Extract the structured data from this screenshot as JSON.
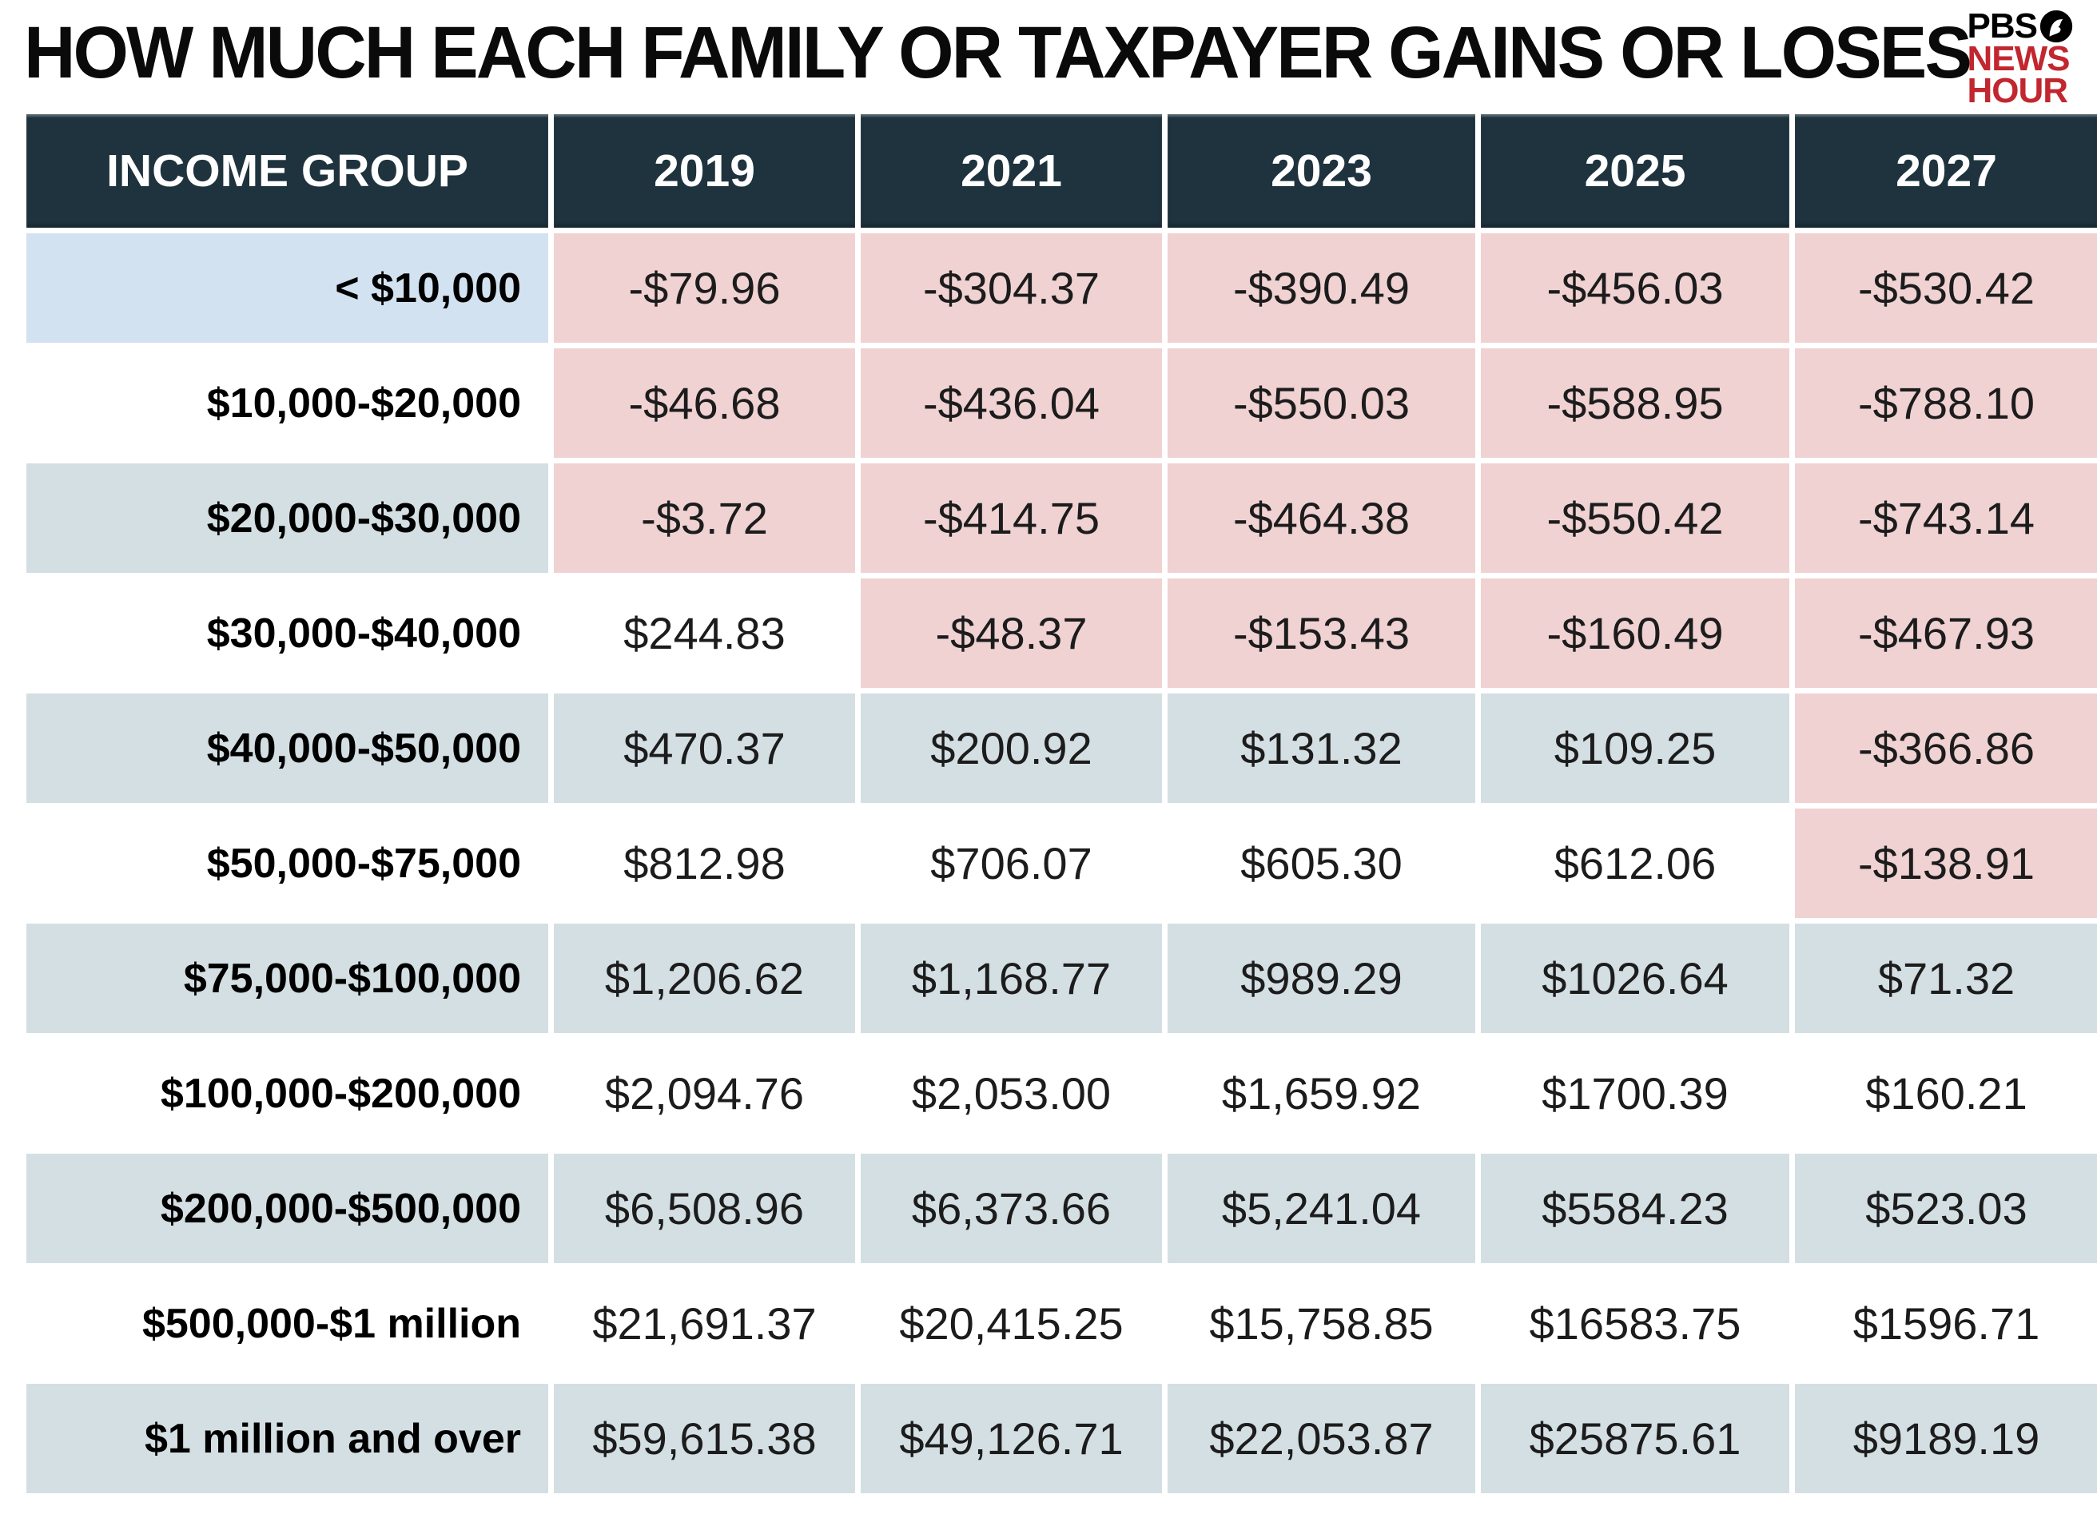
{
  "title": "HOW MUCH EACH FAMILY OR TAXPAYER GAINS OR LOSES",
  "logo": {
    "pbs": "PBS",
    "news": "NEWS",
    "hour": "HOUR"
  },
  "colors": {
    "header_bg": "#1E333E",
    "loss_pink": "#F0D2D3",
    "row_alt": "#D4DFE3",
    "first_row_label_blue": "#D3E2F0",
    "logo_red": "#C2262E"
  },
  "table": {
    "header": [
      "INCOME GROUP",
      "2019",
      "2021",
      "2023",
      "2025",
      "2027"
    ],
    "rows": [
      {
        "label": "< $10,000",
        "values": [
          "-$79.96",
          "-$304.37",
          "-$390.49",
          "-$456.03",
          "-$530.42"
        ]
      },
      {
        "label": "$10,000-$20,000",
        "values": [
          "-$46.68",
          "-$436.04",
          "-$550.03",
          "-$588.95",
          "-$788.10"
        ]
      },
      {
        "label": "$20,000-$30,000",
        "values": [
          "-$3.72",
          "-$414.75",
          "-$464.38",
          "-$550.42",
          "-$743.14"
        ]
      },
      {
        "label": "$30,000-$40,000",
        "values": [
          "$244.83",
          "-$48.37",
          "-$153.43",
          "-$160.49",
          "-$467.93"
        ]
      },
      {
        "label": "$40,000-$50,000",
        "values": [
          "$470.37",
          "$200.92",
          "$131.32",
          "$109.25",
          "-$366.86"
        ]
      },
      {
        "label": "$50,000-$75,000",
        "values": [
          "$812.98",
          "$706.07",
          "$605.30",
          "$612.06",
          "-$138.91"
        ]
      },
      {
        "label": "$75,000-$100,000",
        "values": [
          "$1,206.62",
          "$1,168.77",
          "$989.29",
          "$1026.64",
          "$71.32"
        ]
      },
      {
        "label": "$100,000-$200,000",
        "values": [
          "$2,094.76",
          "$2,053.00",
          "$1,659.92",
          "$1700.39",
          "$160.21"
        ]
      },
      {
        "label": "$200,000-$500,000",
        "values": [
          "$6,508.96",
          "$6,373.66",
          "$5,241.04",
          "$5584.23",
          "$523.03"
        ]
      },
      {
        "label": "$500,000-$1 million",
        "values": [
          "$21,691.37",
          "$20,415.25",
          "$15,758.85",
          "$16583.75",
          "$1596.71"
        ]
      },
      {
        "label": "$1 million and over",
        "values": [
          "$59,615.38",
          "$49,126.71",
          "$22,053.87",
          "$25875.61",
          "$9189.19"
        ]
      }
    ]
  },
  "chart_data": {
    "type": "table",
    "title": "HOW MUCH EACH FAMILY OR TAXPAYER GAINS OR LOSES",
    "columns": [
      "INCOME GROUP",
      "2019",
      "2021",
      "2023",
      "2025",
      "2027"
    ],
    "categories": [
      "< $10,000",
      "$10,000-$20,000",
      "$20,000-$30,000",
      "$30,000-$40,000",
      "$40,000-$50,000",
      "$50,000-$75,000",
      "$75,000-$100,000",
      "$100,000-$200,000",
      "$200,000-$500,000",
      "$500,000-$1 million",
      "$1 million and over"
    ],
    "series": [
      {
        "name": "2019",
        "values": [
          -79.96,
          -46.68,
          -3.72,
          244.83,
          470.37,
          812.98,
          1206.62,
          2094.76,
          6508.96,
          21691.37,
          59615.38
        ]
      },
      {
        "name": "2021",
        "values": [
          -304.37,
          -436.04,
          -414.75,
          -48.37,
          200.92,
          706.07,
          1168.77,
          2053.0,
          6373.66,
          20415.25,
          49126.71
        ]
      },
      {
        "name": "2023",
        "values": [
          -390.49,
          -550.03,
          -464.38,
          -153.43,
          131.32,
          605.3,
          989.29,
          1659.92,
          5241.04,
          15758.85,
          22053.87
        ]
      },
      {
        "name": "2025",
        "values": [
          -456.03,
          -588.95,
          -550.42,
          -160.49,
          109.25,
          612.06,
          1026.64,
          1700.39,
          5584.23,
          16583.75,
          25875.61
        ]
      },
      {
        "name": "2027",
        "values": [
          -530.42,
          -788.1,
          -743.14,
          -467.93,
          -366.86,
          -138.91,
          71.32,
          160.21,
          523.03,
          1596.71,
          9189.19
        ]
      }
    ],
    "legend_position": "none",
    "notes": "Negative cells shaded pink; alternating rows shaded blue-gray; first income-group cell shaded light blue; source graphic by PBS NewsHour"
  }
}
